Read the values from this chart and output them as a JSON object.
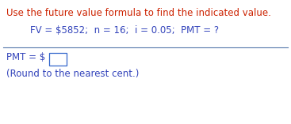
{
  "title_text": "Use the future value formula to find the indicated value.",
  "title_color": "#cc2200",
  "formula_text": "FV = $5852;  n = 16;  i = 0.05;  PMT = ?",
  "formula_color": "#3344bb",
  "answer_label": "PMT = $",
  "answer_color": "#3344bb",
  "note_text": "(Round to the nearest cent.)",
  "note_color": "#3344bb",
  "bg_color": "#ffffff",
  "line_color": "#5577aa",
  "title_fontsize": 8.5,
  "formula_fontsize": 8.5,
  "answer_fontsize": 8.5,
  "note_fontsize": 8.5
}
